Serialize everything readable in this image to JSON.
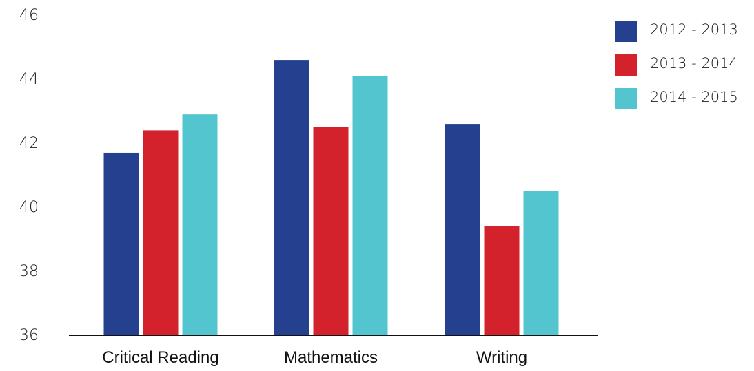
{
  "chart_data": {
    "type": "bar",
    "categories": [
      "Critical Reading",
      "Mathematics",
      "Writing"
    ],
    "series": [
      {
        "name": "2012 - 2013",
        "color": "#24408e",
        "values": [
          41.7,
          44.6,
          42.6
        ]
      },
      {
        "name": "2013 - 2014",
        "color": "#d4222c",
        "values": [
          42.4,
          42.5,
          39.4
        ]
      },
      {
        "name": "2014 - 2015",
        "color": "#53c5cf",
        "values": [
          42.9,
          44.1,
          40.5
        ]
      }
    ],
    "yticks": [
      "36",
      "38",
      "40",
      "42",
      "44",
      "46"
    ],
    "ylim": [
      36,
      46
    ],
    "grid": false,
    "legend_position": "top-right"
  }
}
